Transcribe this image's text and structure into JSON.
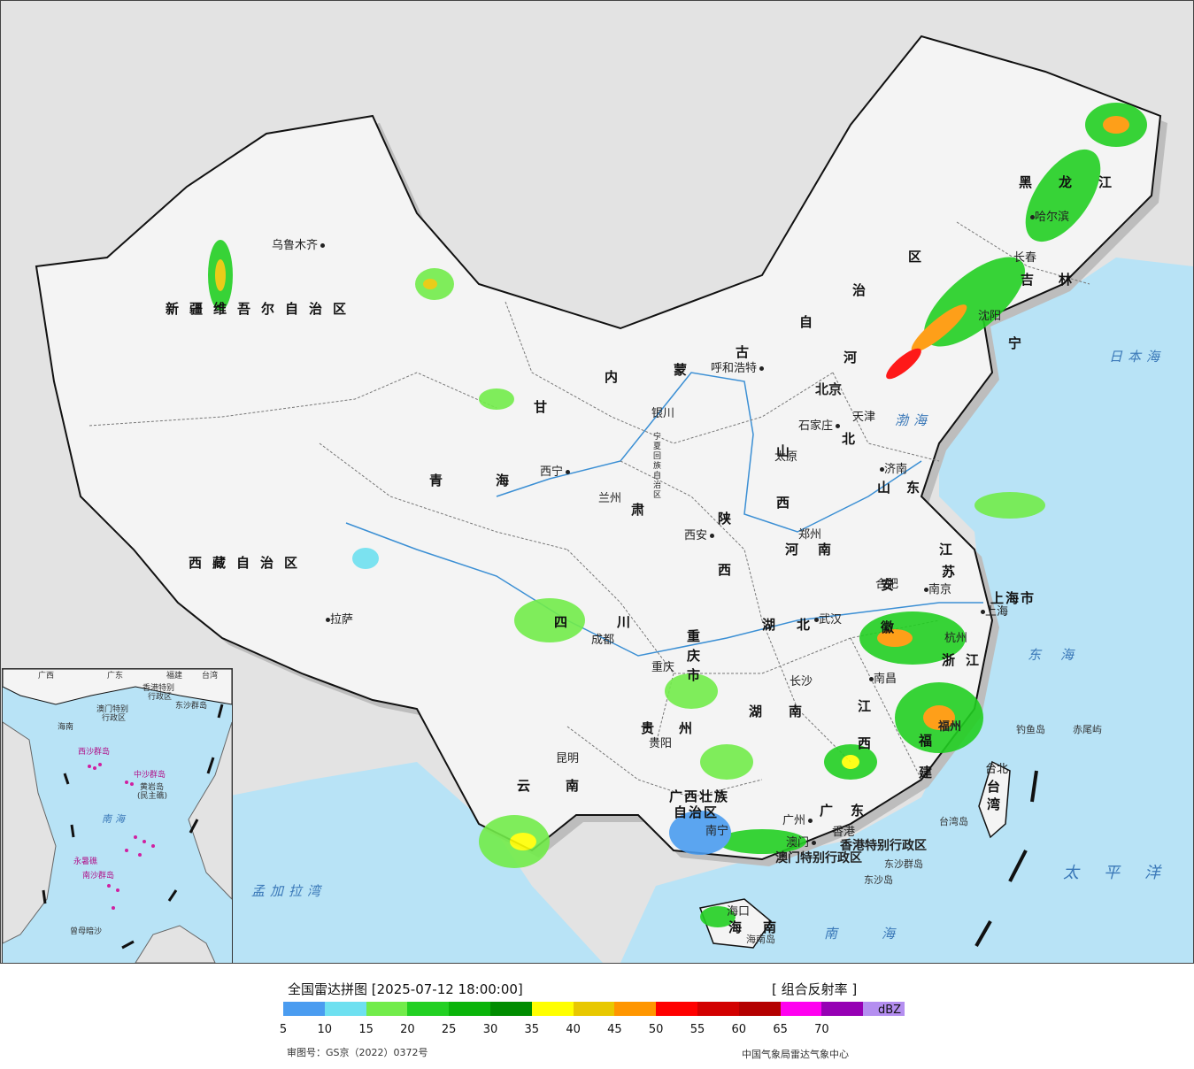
{
  "map": {
    "region_labels": {
      "xinjiang": "新疆维吾尔自治区",
      "xizang": "西藏自治区",
      "qinghai": "青海",
      "gansu": "甘",
      "gansu_su": "肃",
      "neimenggu_nei": "内",
      "neimenggu_meng": "蒙",
      "neimenggu_gu": "古",
      "neimenggu_zi": "自",
      "neimenggu_zhi": "治",
      "neimenggu_qu": "区",
      "heilongjiang": "黑龙江",
      "jilin": "吉林",
      "liaoning": "宁",
      "hebei_he": "河",
      "hebei_bei": "北",
      "shanxi": "山西",
      "shaanxi": "陕西",
      "ningxia": "宁夏回族自治区",
      "shandong": "山东",
      "henan": "河南",
      "jiangsu_jiang": "江",
      "jiangsu_su": "苏",
      "anhui": "安徽",
      "hubei": "湖北",
      "sichuan": "四川",
      "chongqing": "重庆市",
      "guizhou": "贵州",
      "yunnan": "云南",
      "hunan": "湖南",
      "jiangxi": "江西",
      "zhejiang": "浙江",
      "fujian": "福建",
      "guangdong": "广东",
      "guangxi_a": "广西壮族",
      "guangxi_b": "自治区",
      "hainan": "海南",
      "shanghai_shi": "上海市",
      "taiwan": "台湾",
      "hongkong_sar": "香港特别行政区",
      "macau_sar": "澳门特别行政区"
    },
    "cities": {
      "urumqi": "乌鲁木齐",
      "lhasa": "拉萨",
      "xining": "西宁",
      "lanzhou": "兰州",
      "yinchuan": "银川",
      "hohhot": "呼和浩特",
      "beijing": "北京",
      "tianjin": "天津",
      "shijiazhuang": "石家庄",
      "taiyuan": "太原",
      "jinan": "济南",
      "xian": "西安",
      "zhengzhou": "郑州",
      "hefei": "合肥",
      "nanjing": "南京",
      "shanghai": "上海",
      "hangzhou": "杭州",
      "wuhan": "武汉",
      "chengdu": "成都",
      "chongqing": "重庆",
      "guiyang": "贵阳",
      "kunming": "昆明",
      "changsha": "长沙",
      "nanchang": "南昌",
      "fuzhou": "福州",
      "taibei": "台北",
      "guangzhou": "广州",
      "nanning": "南宁",
      "haikou": "海口",
      "xianggang": "香港",
      "aomen": "澳门",
      "shenyang": "沈阳",
      "changchun": "长春",
      "harbin": "哈尔滨"
    },
    "seas": {
      "japan_sea": "日本海",
      "bohai": "渤海",
      "donghai": "东海",
      "nanhai": "南海",
      "pacific": "太平洋",
      "bengal": "孟加拉湾"
    },
    "islands": {
      "diaoyu": "钓鱼岛",
      "chiwei": "赤尾屿",
      "taiwan_island": "台湾岛",
      "hainan_island": "海南岛",
      "dongsha_islands": "东沙群岛",
      "dongsha_island": "东沙岛"
    }
  },
  "inset": {
    "labels": {
      "guangxi": "广西",
      "guangdong": "广东",
      "fujian": "福建",
      "taiwan": "台湾",
      "hk": "香港特别",
      "hk2": "行政区",
      "macau": "澳门特别",
      "macau2": "行政区",
      "dongsha": "东沙群岛",
      "hainan": "海南",
      "xisha": "西沙群岛",
      "zhongsha": "中沙群岛",
      "huangyan": "黄岩岛",
      "huangyan2": "(民主礁)",
      "nanhai": "南海",
      "nansha": "南沙群岛",
      "yongshu": "永暑礁",
      "zengmu": "曾母暗沙"
    }
  },
  "legend": {
    "title": "全国雷达拼图 [2025-07-12 18:00:00]",
    "product": "[ 组合反射率 ]",
    "unit": "dBZ",
    "approval": "审图号：GS京（2022）0372号",
    "source": "中国气象局雷达气象中心",
    "colors": [
      "#4a9cf0",
      "#6ee0f0",
      "#72ec4a",
      "#22d022",
      "#0ab40a",
      "#008c00",
      "#ffff00",
      "#e8c800",
      "#ff9600",
      "#ff0000",
      "#d20000",
      "#b40000",
      "#ff00f0",
      "#9600b4",
      "#b48ef0"
    ],
    "ticks": [
      "5",
      "10",
      "15",
      "20",
      "25",
      "30",
      "35",
      "40",
      "45",
      "50",
      "55",
      "60",
      "65",
      "70"
    ]
  }
}
